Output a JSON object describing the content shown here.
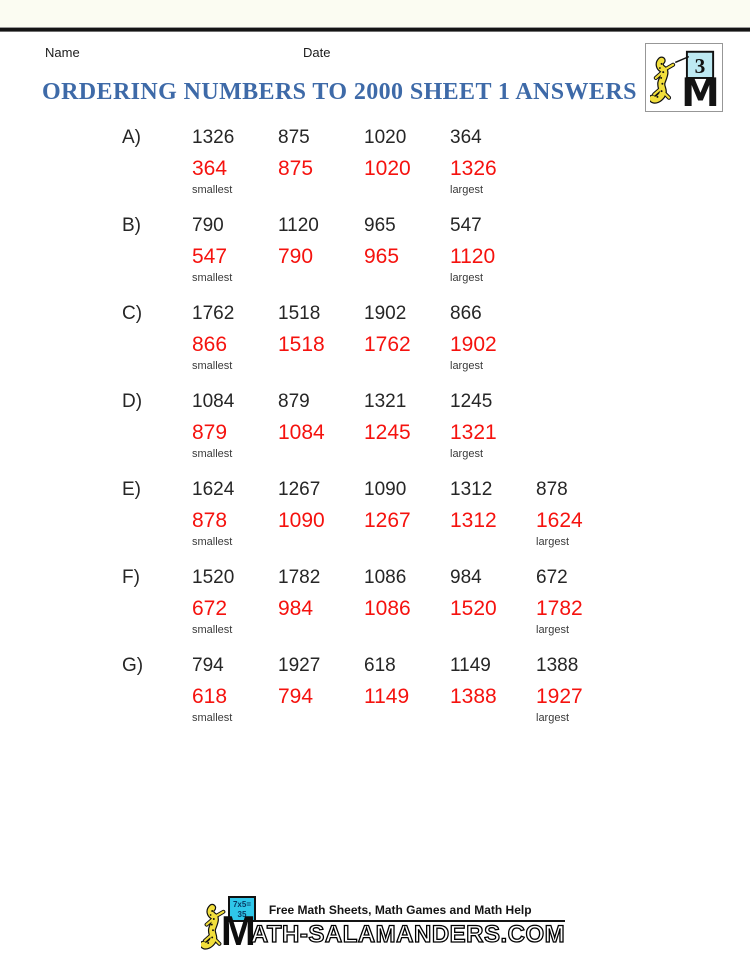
{
  "page": {
    "name_label": "Name",
    "date_label": "Date",
    "title": "ORDERING NUMBERS TO 2000 SHEET 1 ANSWERS"
  },
  "corner_logo": {
    "grade_number": "3",
    "monogram": "M"
  },
  "worksheet": {
    "smallest_label": "smallest",
    "largest_label": "largest",
    "rows": [
      {
        "label": "A)",
        "question": [
          "1326",
          "875",
          "1020",
          "364"
        ],
        "answer": [
          "364",
          "875",
          "1020",
          "1326"
        ]
      },
      {
        "label": "B)",
        "question": [
          "790",
          "1120",
          "965",
          "547"
        ],
        "answer": [
          "547",
          "790",
          "965",
          "1120"
        ]
      },
      {
        "label": "C)",
        "question": [
          "1762",
          "1518",
          "1902",
          "866"
        ],
        "answer": [
          "866",
          "1518",
          "1762",
          "1902"
        ]
      },
      {
        "label": "D)",
        "question": [
          "1084",
          "879",
          "1321",
          "1245"
        ],
        "answer": [
          "879",
          "1084",
          "1245",
          "1321"
        ]
      },
      {
        "label": "E)",
        "question": [
          "1624",
          "1267",
          "1090",
          "1312",
          "878"
        ],
        "answer": [
          "878",
          "1090",
          "1267",
          "1312",
          "1624"
        ]
      },
      {
        "label": "F)",
        "question": [
          "1520",
          "1782",
          "1086",
          "984",
          "672"
        ],
        "answer": [
          "672",
          "984",
          "1086",
          "1520",
          "1782"
        ]
      },
      {
        "label": "G)",
        "question": [
          "794",
          "1927",
          "618",
          "1149",
          "1388"
        ],
        "answer": [
          "618",
          "794",
          "1149",
          "1388",
          "1927"
        ]
      }
    ]
  },
  "footer": {
    "tagline": "Free Math Sheets, Math Games and Math Help",
    "wordmark_m": "M",
    "wordmark_rest": "ATH-SALAMANDERS.COM",
    "board_line1": "7x5=",
    "board_line2": "35"
  },
  "colors": {
    "answer_red": "#f5120e",
    "question_black": "#262626",
    "title_blue": "#3e6aa8",
    "board_cyan": "#2fc7ea",
    "badge_cyan": "#bde9f2",
    "salamander_yellow": "#f2df3c"
  }
}
